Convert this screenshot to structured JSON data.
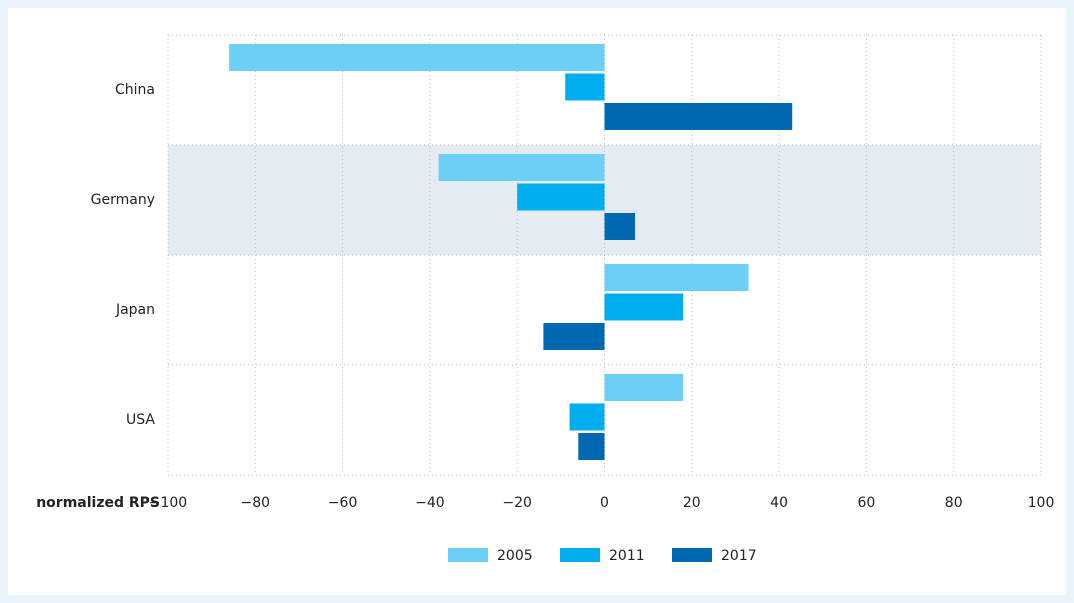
{
  "chart_data": {
    "type": "hbar",
    "categories": [
      "China",
      "Germany",
      "Japan",
      "USA"
    ],
    "series": [
      {
        "name": "2005",
        "color": "#6dcff6",
        "values": [
          -86,
          -38,
          33,
          18
        ]
      },
      {
        "name": "2011",
        "color": "#00aeef",
        "values": [
          -9,
          -20,
          18,
          -8
        ]
      },
      {
        "name": "2017",
        "color": "#0067b1",
        "values": [
          43,
          7,
          -14,
          -6
        ]
      }
    ],
    "xlabel": "normalized RPS",
    "xlim": [
      -100,
      100
    ],
    "xticks": [
      {
        "value": -100,
        "label": "−100"
      },
      {
        "value": -80,
        "label": "−80"
      },
      {
        "value": -60,
        "label": "−60"
      },
      {
        "value": -40,
        "label": "−40"
      },
      {
        "value": -20,
        "label": "−20"
      },
      0,
      20,
      40,
      60,
      80,
      100
    ],
    "grid": true
  }
}
